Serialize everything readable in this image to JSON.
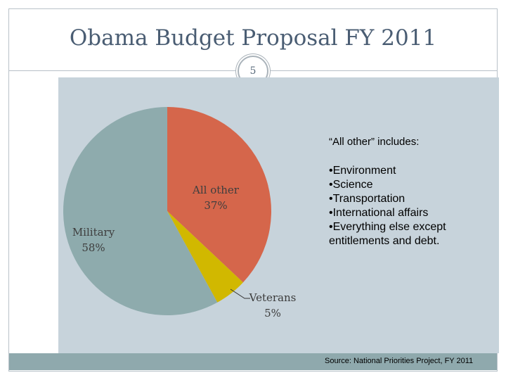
{
  "slide": {
    "title": "Obama Budget Proposal FY 2011",
    "number": "5",
    "source": "Source: National Priorities Project, FY 2011"
  },
  "notes": {
    "heading": "“All other” includes:",
    "items": [
      "•Environment",
      "•Science",
      "•Transportation",
      "•International affairs",
      "•Everything else except",
      "entitlements and debt."
    ]
  },
  "chart_data": {
    "type": "pie",
    "slices": [
      {
        "name": "All other",
        "label": "37%",
        "value": 37,
        "color": "#d5664b"
      },
      {
        "name": "Veterans",
        "label": "5%",
        "value": 5,
        "color": "#d1b800"
      },
      {
        "name": "Military",
        "label": "58%",
        "value": 58,
        "color": "#8eabad"
      }
    ]
  }
}
